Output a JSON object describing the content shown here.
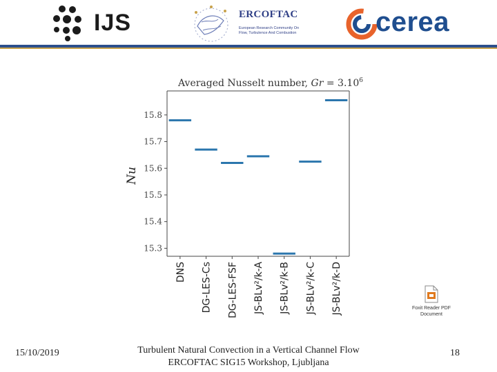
{
  "header": {
    "ijs_logo_text": "IJS",
    "ercoftac_name": "ERCOFTAC",
    "ercoftac_subtitle": "European Research Community On Flow, Turbulence And Combustion",
    "cerea_logo_text": "cerea",
    "colors": {
      "ijs": "#1b1b1b",
      "ercoftac": "#2f3f86",
      "cerea": "#1f4e8f",
      "cerea_accent": "#e8632b"
    }
  },
  "chart_data": {
    "type": "scatter",
    "marker": "horizontal-dash",
    "title": "Averaged Nusselt number, Gr = 3.10^6",
    "title_parts": {
      "prefix": "Averaged Nusselt number, ",
      "var": "Gr",
      "eq": " = 3.10",
      "exp": "6"
    },
    "ylabel": "Nu",
    "xlabel": "",
    "categories": [
      "DNS",
      "DG-LES-Cs",
      "DG-LES-FSF",
      "JS-BLv²/k-A",
      "JS-BLv²/k-B",
      "JS-BLv²/k-C",
      "JS-BLv²/k-D"
    ],
    "values": [
      15.78,
      15.67,
      15.62,
      15.645,
      15.28,
      15.625,
      15.855
    ],
    "ylim": [
      15.27,
      15.89
    ],
    "yticks": [
      15.3,
      15.4,
      15.5,
      15.6,
      15.7,
      15.8
    ],
    "ytick_labels": [
      "15.3",
      "15.4",
      "15.5",
      "15.6",
      "15.7",
      "15.8"
    ],
    "color": "#2b76ad",
    "grid": false,
    "legend": "none"
  },
  "attachment": {
    "icon": "pdf-document-icon",
    "caption_line1": "Foxit Reader PDF",
    "caption_line2": "Document"
  },
  "footer": {
    "date": "15/10/2019",
    "title_line1": "Turbulent Natural Convection in a Vertical Channel Flow",
    "title_line2": "ERCOFTAC SIG15 Workshop, Ljubljana",
    "page_number": "18"
  }
}
